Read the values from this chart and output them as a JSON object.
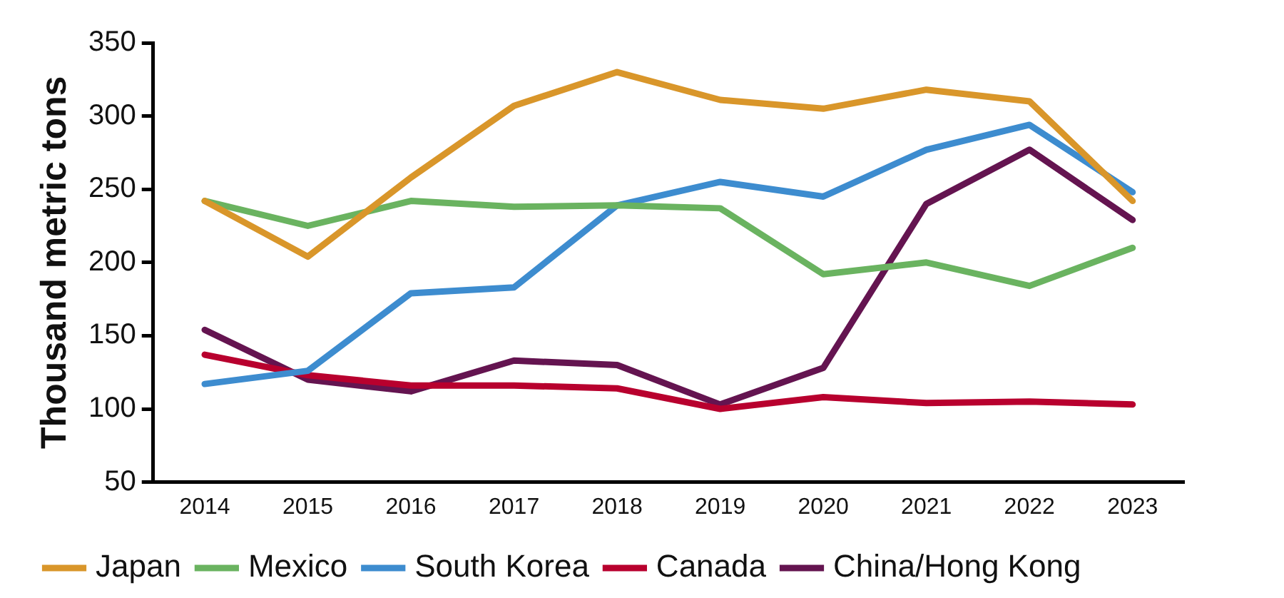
{
  "chart_data": {
    "type": "line",
    "ylabel": "Thousand metric tons",
    "categories": [
      "2014",
      "2015",
      "2016",
      "2017",
      "2018",
      "2019",
      "2020",
      "2021",
      "2022",
      "2023"
    ],
    "series": [
      {
        "name": "Japan",
        "color": "#d9962a",
        "values": [
          242,
          204,
          258,
          307,
          330,
          311,
          305,
          318,
          310,
          242
        ]
      },
      {
        "name": "Mexico",
        "color": "#6ab360",
        "values": [
          242,
          225,
          242,
          238,
          239,
          237,
          192,
          200,
          184,
          210
        ]
      },
      {
        "name": "South Korea",
        "color": "#3d8ccf",
        "values": [
          117,
          126,
          179,
          183,
          239,
          255,
          245,
          277,
          294,
          248
        ]
      },
      {
        "name": "Canada",
        "color": "#b8002e",
        "values": [
          137,
          123,
          116,
          116,
          114,
          100,
          108,
          104,
          105,
          103
        ]
      },
      {
        "name": "China/Hong Kong",
        "color": "#641450",
        "values": [
          154,
          120,
          112,
          133,
          130,
          103,
          128,
          240,
          277,
          229
        ]
      }
    ],
    "ylim": [
      50,
      350
    ],
    "yticks": [
      50,
      100,
      150,
      200,
      250,
      300,
      350
    ],
    "grid": false,
    "legend": "bottom",
    "marker": "none",
    "line_style": "solid"
  }
}
